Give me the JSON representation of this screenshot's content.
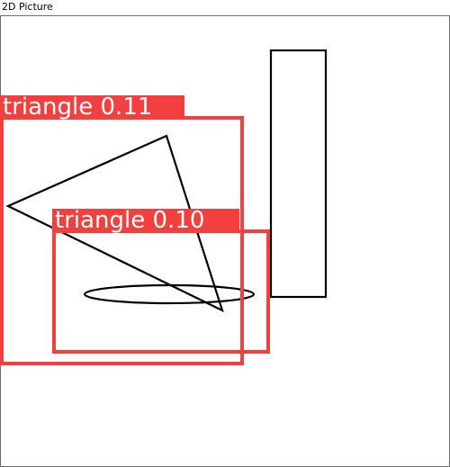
{
  "window": {
    "title": "2D Picture"
  },
  "colors": {
    "detection_box": "#f2403f",
    "shape_stroke": "#000000",
    "label_text": "#ffffff"
  },
  "shapes": [
    {
      "name": "rectangle"
    },
    {
      "name": "triangle"
    },
    {
      "name": "ellipse"
    }
  ],
  "detections": [
    {
      "label": "triangle 0.11",
      "class": "triangle",
      "score": 0.11
    },
    {
      "label": "triangle 0.10",
      "class": "triangle",
      "score": 0.1
    }
  ]
}
